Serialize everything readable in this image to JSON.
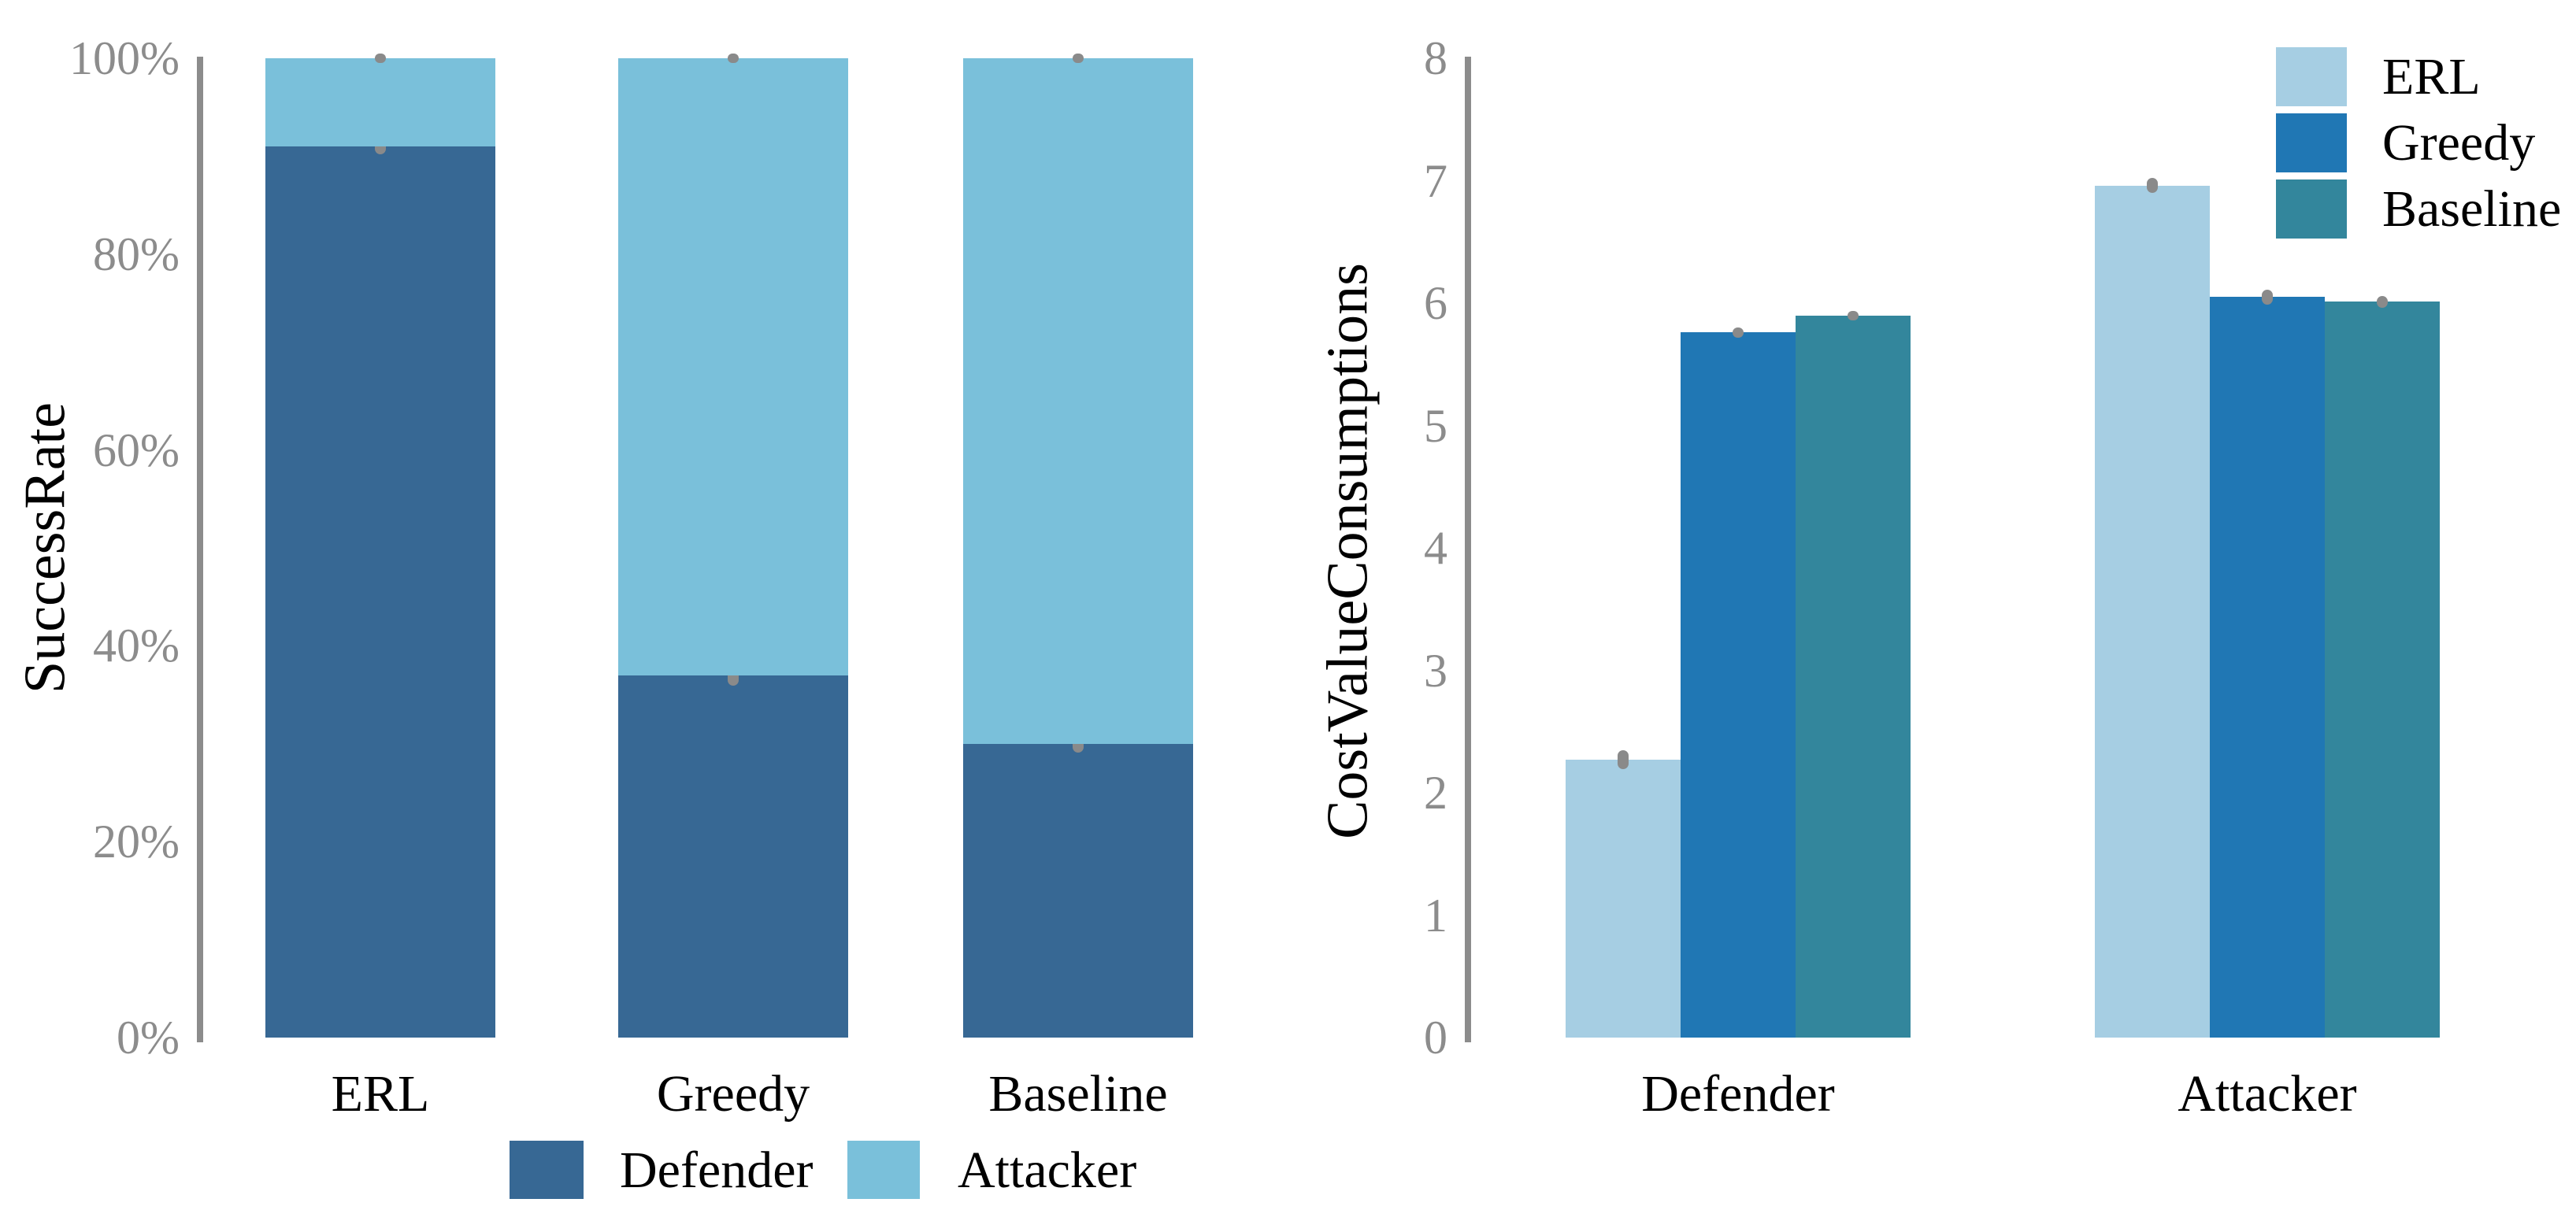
{
  "chart_data": [
    {
      "type": "bar",
      "variant": "stacked",
      "ylabel": "SuccessRate",
      "categories": [
        "ERL",
        "Greedy",
        "Baseline"
      ],
      "series": [
        {
          "name": "Defender",
          "color": "#376894",
          "values": [
            91,
            37,
            30
          ],
          "errors": [
            0.8,
            1.1,
            0.9
          ]
        },
        {
          "name": "Attacker",
          "color": "#7AC0DA",
          "values": [
            9,
            63,
            70
          ],
          "errors": [
            0.3,
            0.5,
            0.3
          ]
        }
      ],
      "ylim": [
        0,
        100
      ],
      "yticks": [
        {
          "label": "0%",
          "value": 0
        },
        {
          "label": "20%",
          "value": 20
        },
        {
          "label": "40%",
          "value": 40
        },
        {
          "label": "60%",
          "value": 60
        },
        {
          "label": "80%",
          "value": 80
        },
        {
          "label": "100%",
          "value": 100
        }
      ],
      "grid": false,
      "legend_position": "bottom"
    },
    {
      "type": "bar",
      "variant": "grouped",
      "ylabel": "CostValueConsumptions",
      "categories": [
        "Defender",
        "Attacker"
      ],
      "series": [
        {
          "name": "ERL",
          "color": "#A6CEE3",
          "values": [
            2.27,
            6.96
          ],
          "errors": [
            0.08,
            0.06
          ]
        },
        {
          "name": "Greedy",
          "color": "#2077B4",
          "values": [
            5.76,
            6.05
          ],
          "errors": [
            0.04,
            0.06
          ]
        },
        {
          "name": "Baseline",
          "color": "#33869C",
          "values": [
            5.9,
            6.01
          ],
          "errors": [
            0.03,
            0.05
          ]
        }
      ],
      "ylim": [
        0,
        8
      ],
      "yticks": [
        {
          "label": "0",
          "value": 0
        },
        {
          "label": "1",
          "value": 1
        },
        {
          "label": "2",
          "value": 2
        },
        {
          "label": "3",
          "value": 3
        },
        {
          "label": "4",
          "value": 4
        },
        {
          "label": "5",
          "value": 5
        },
        {
          "label": "6",
          "value": 6
        },
        {
          "label": "7",
          "value": 7
        },
        {
          "label": "8",
          "value": 8
        }
      ],
      "grid": false,
      "legend_position": "top-right"
    }
  ],
  "colors": {
    "axis": "#8C8C8C",
    "tick_label": "#8C8C8C",
    "error_bar": "#8A8A8A",
    "category_label": "#000000",
    "background": "#FFFFFF"
  }
}
